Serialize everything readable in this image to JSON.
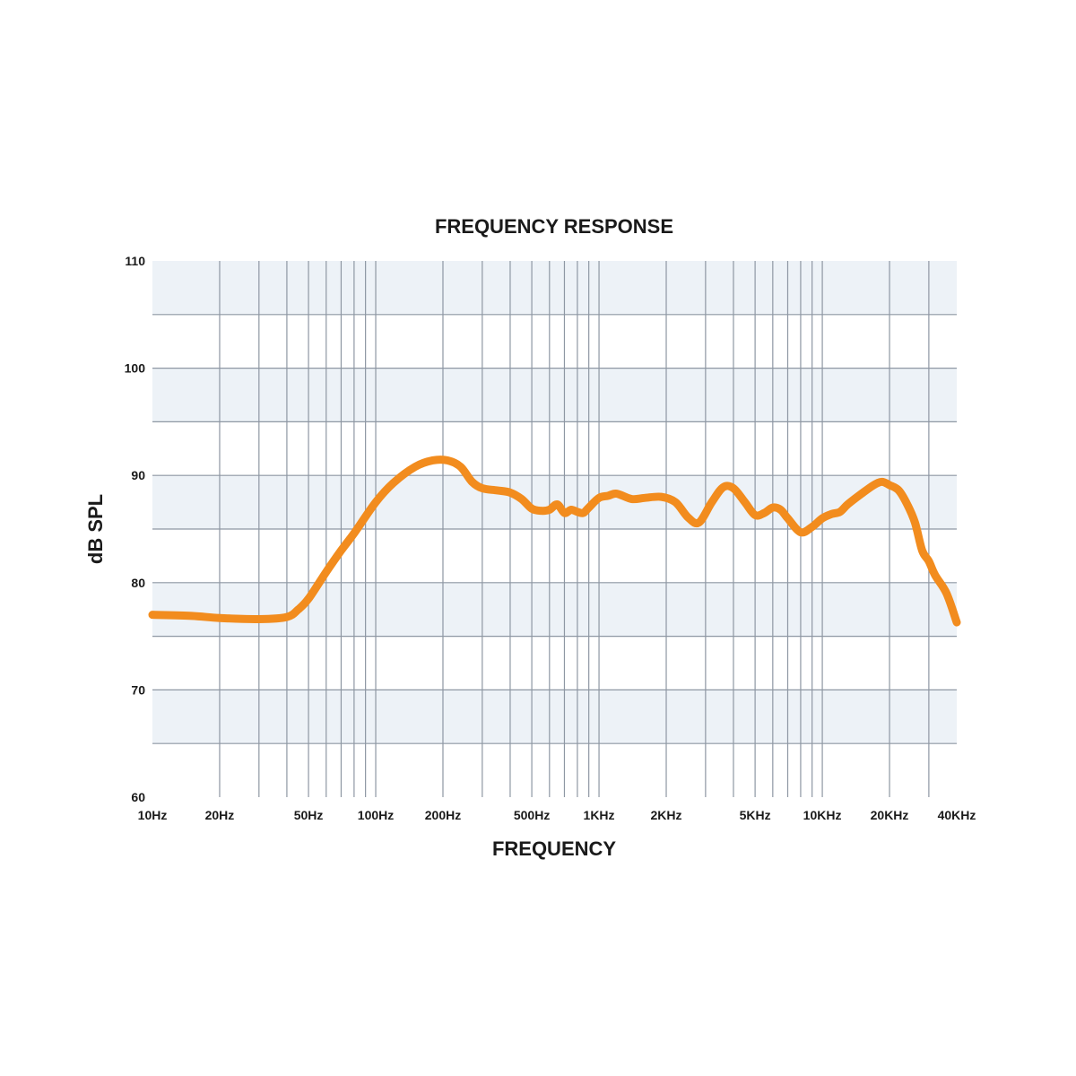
{
  "chart_data": {
    "type": "line",
    "title": "FREQUENCY RESPONSE",
    "xlabel": "FREQUENCY",
    "ylabel": "dB SPL",
    "x_scale": "log",
    "xlim": [
      10,
      40000
    ],
    "ylim": [
      60,
      110
    ],
    "grid": true,
    "legend": "none",
    "y_ticks": [
      {
        "value": 60,
        "label": "60"
      },
      {
        "value": 70,
        "label": "70"
      },
      {
        "value": 80,
        "label": "80"
      },
      {
        "value": 90,
        "label": "90"
      },
      {
        "value": 100,
        "label": "100"
      },
      {
        "value": 110,
        "label": "110"
      }
    ],
    "x_tick_labels": [
      {
        "value": 10,
        "label": "10Hz"
      },
      {
        "value": 20,
        "label": "20Hz"
      },
      {
        "value": 50,
        "label": "50Hz"
      },
      {
        "value": 100,
        "label": "100Hz"
      },
      {
        "value": 200,
        "label": "200Hz"
      },
      {
        "value": 500,
        "label": "500Hz"
      },
      {
        "value": 1000,
        "label": "1KHz"
      },
      {
        "value": 2000,
        "label": "2KHz"
      },
      {
        "value": 5000,
        "label": "5KHz"
      },
      {
        "value": 10000,
        "label": "10KHz"
      },
      {
        "value": 20000,
        "label": "20KHz"
      },
      {
        "value": 40000,
        "label": "40KHz"
      }
    ],
    "x_gridlines": [
      20,
      30,
      40,
      50,
      60,
      70,
      80,
      90,
      100,
      200,
      300,
      400,
      500,
      600,
      700,
      800,
      900,
      1000,
      2000,
      3000,
      4000,
      5000,
      6000,
      7000,
      8000,
      9000,
      10000,
      20000,
      30000
    ],
    "y_gridlines": [
      65,
      70,
      75,
      80,
      85,
      90,
      95,
      100,
      105
    ],
    "series": [
      {
        "color": "#f28c1e",
        "x": [
          10,
          15,
          20,
          30,
          40,
          45,
          50,
          60,
          70,
          80,
          100,
          120,
          150,
          180,
          210,
          240,
          270,
          300,
          350,
          400,
          450,
          500,
          550,
          600,
          650,
          700,
          750,
          800,
          850,
          900,
          1000,
          1100,
          1200,
          1400,
          1600,
          1900,
          2200,
          2500,
          2800,
          3200,
          3600,
          4000,
          4500,
          5000,
          5500,
          6000,
          6500,
          7000,
          8000,
          9000,
          10000,
          11000,
          12000,
          13000,
          15000,
          17000,
          18500,
          20000,
          22000,
          24000,
          26000,
          28000,
          30000,
          32000,
          36000,
          40000
        ],
        "y": [
          77,
          76.9,
          76.7,
          76.6,
          76.8,
          77.5,
          78.5,
          81,
          83,
          84.6,
          87.5,
          89.3,
          90.8,
          91.4,
          91.4,
          90.8,
          89.4,
          88.8,
          88.6,
          88.4,
          87.8,
          86.9,
          86.7,
          86.8,
          87.3,
          86.5,
          86.8,
          86.6,
          86.5,
          87,
          87.9,
          88.1,
          88.3,
          87.8,
          87.9,
          88,
          87.5,
          86.1,
          85.6,
          87.5,
          88.9,
          88.8,
          87.5,
          86.3,
          86.5,
          87,
          86.8,
          86,
          84.7,
          85.2,
          86,
          86.4,
          86.6,
          87.3,
          88.3,
          89.1,
          89.4,
          89.1,
          88.6,
          87.3,
          85.6,
          83,
          82,
          80.7,
          79,
          76.3
        ]
      }
    ]
  }
}
